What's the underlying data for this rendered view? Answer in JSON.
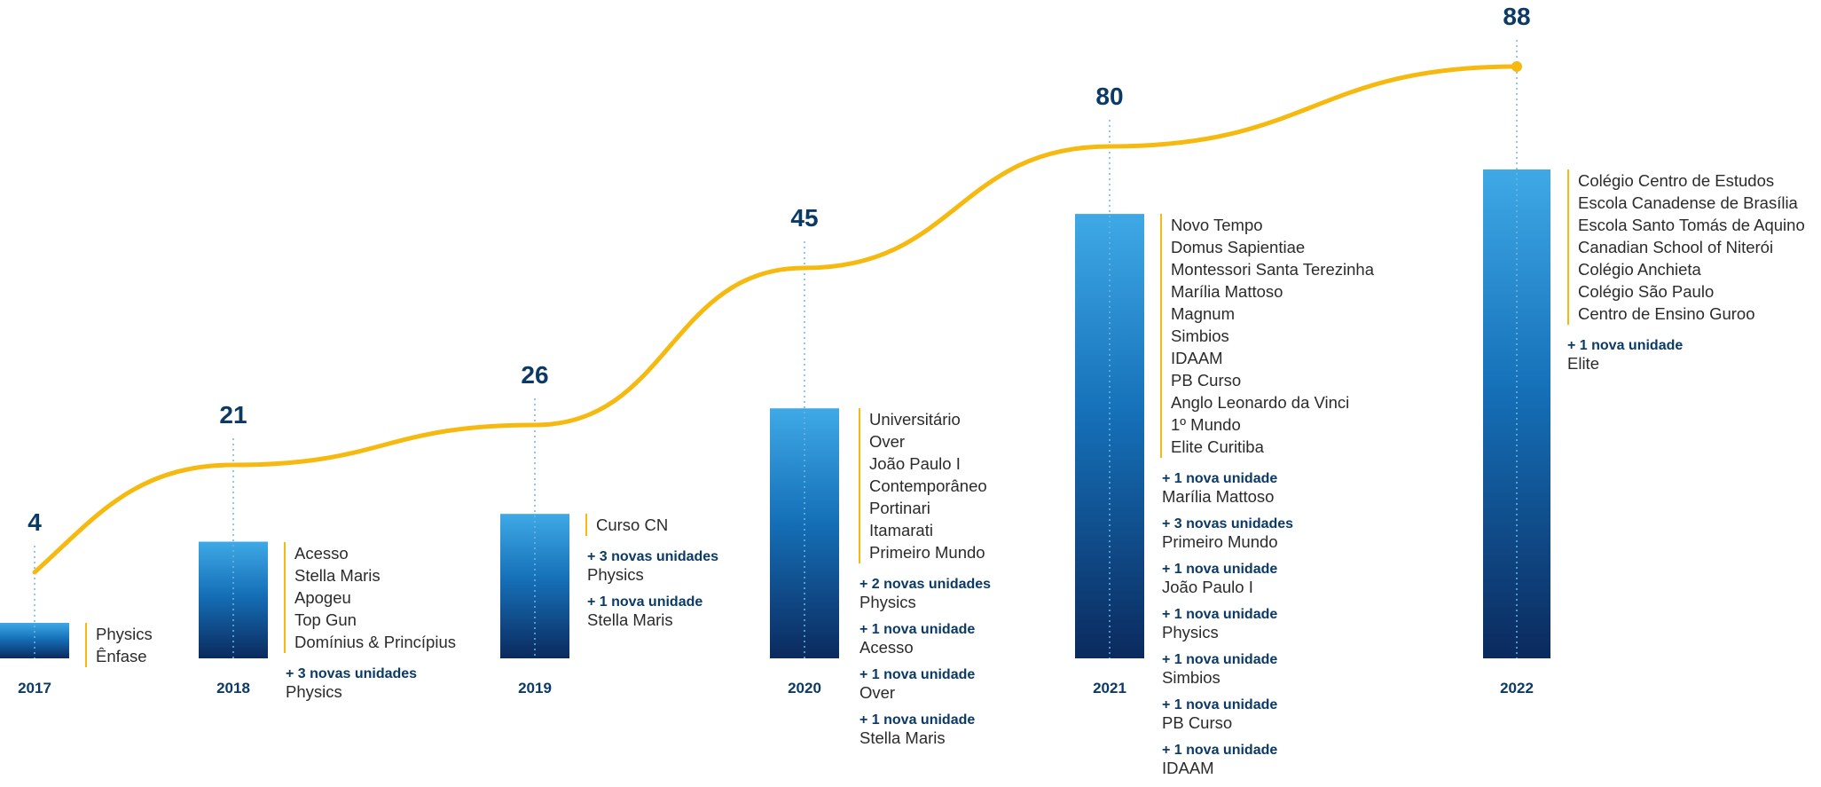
{
  "chart_data": {
    "type": "bar",
    "categories": [
      "2017",
      "2018",
      "2019",
      "2020",
      "2021",
      "2022"
    ],
    "values": [
      4,
      21,
      26,
      45,
      80,
      88
    ],
    "ylim": [
      0,
      88
    ],
    "grid": false,
    "trend_line": true,
    "colors": {
      "bar_top": "#3fa9e6",
      "bar_mid": "#1570b8",
      "bar_bottom": "#0b2a5e",
      "line": "#f5b90f",
      "guide": "#6ab7ea",
      "text_accent": "#0b3a66"
    },
    "groups": [
      {
        "year": "2017",
        "total": 4,
        "schools": [
          "Physics",
          "Ênfase"
        ],
        "additions": []
      },
      {
        "year": "2018",
        "total": 21,
        "schools": [
          "Acesso",
          "Stella Maris",
          "Apogeu",
          "Top Gun",
          "Domínius & Princípius"
        ],
        "additions": [
          {
            "label": "+ 3 novas unidades",
            "school": "Physics"
          }
        ]
      },
      {
        "year": "2019",
        "total": 26,
        "schools": [
          "Curso CN"
        ],
        "additions": [
          {
            "label": "+ 3 novas unidades",
            "school": "Physics"
          },
          {
            "label": "+ 1 nova unidade",
            "school": "Stella Maris"
          }
        ]
      },
      {
        "year": "2020",
        "total": 45,
        "schools": [
          "Universitário",
          "Over",
          "João Paulo I",
          "Contemporâneo",
          "Portinari",
          "Itamarati",
          "Primeiro Mundo"
        ],
        "additions": [
          {
            "label": "+ 2 novas unidades",
            "school": "Physics"
          },
          {
            "label": "+ 1 nova unidade",
            "school": "Acesso"
          },
          {
            "label": "+ 1 nova unidade",
            "school": "Over"
          },
          {
            "label": "+ 1 nova unidade",
            "school": "Stella Maris"
          }
        ]
      },
      {
        "year": "2021",
        "total": 80,
        "schools": [
          "Novo Tempo",
          "Domus Sapientiae",
          "Montessori Santa Terezinha",
          "Marília Mattoso",
          "Magnum",
          "Simbios",
          "IDAAM",
          "PB Curso",
          "Anglo Leonardo da Vinci",
          "1º Mundo",
          "Elite Curitiba"
        ],
        "additions": [
          {
            "label": "+ 1 nova unidade",
            "school": "Marília Mattoso"
          },
          {
            "label": "+ 3 novas unidades",
            "school": "Primeiro Mundo"
          },
          {
            "label": "+ 1 nova unidade",
            "school": "João Paulo I"
          },
          {
            "label": "+ 1 nova unidade",
            "school": "Physics"
          },
          {
            "label": "+ 1 nova unidade",
            "school": "Simbios"
          },
          {
            "label": "+ 1 nova unidade",
            "school": "PB Curso"
          },
          {
            "label": "+ 1 nova unidade",
            "school": "IDAAM"
          }
        ]
      },
      {
        "year": "2022",
        "total": 88,
        "schools": [
          "Colégio Centro de Estudos",
          "Escola Canadense de Brasília",
          "Escola Santo Tomás de Aquino",
          "Canadian School of Niterói",
          "Colégio Anchieta",
          "Colégio São Paulo",
          "Centro de Ensino Guroo"
        ],
        "additions": [
          {
            "label": "+ 1 nova unidade",
            "school": "Elite"
          }
        ]
      }
    ]
  }
}
